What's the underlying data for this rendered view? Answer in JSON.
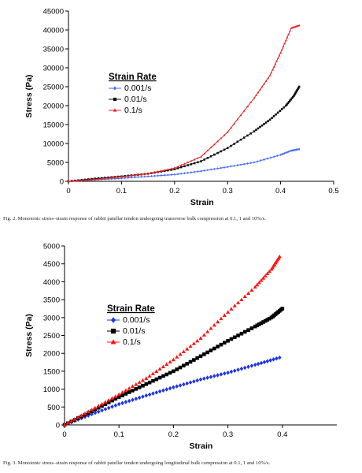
{
  "chart_data": [
    {
      "type": "line",
      "ylabel": "Stress (Pa)",
      "xlabel": "Strain",
      "xlim": [
        0,
        0.5
      ],
      "ylim": [
        0,
        45000
      ],
      "x_ticks": [
        0,
        0.1,
        0.2,
        0.3,
        0.4,
        0.5
      ],
      "x_tick_labels": [
        "0",
        "0.1",
        "0.2",
        "0.3",
        "0.4",
        "0.5"
      ],
      "y_ticks": [
        0,
        5000,
        10000,
        15000,
        20000,
        25000,
        30000,
        35000,
        40000,
        45000
      ],
      "y_tick_labels": [
        "0",
        "5000",
        "10000",
        "15000",
        "20000",
        "25000",
        "30000",
        "35000",
        "40000",
        "45000"
      ],
      "grid": false,
      "legend": {
        "title": "Strain Rate",
        "position": "upper-left"
      },
      "series": [
        {
          "name": "0.001/s",
          "color": "#4a6cf7",
          "marker": "diamond",
          "x": [
            0,
            0.05,
            0.1,
            0.15,
            0.2,
            0.25,
            0.3,
            0.35,
            0.4,
            0.42,
            0.435
          ],
          "y": [
            0,
            400,
            800,
            1300,
            1800,
            2700,
            3800,
            5000,
            7000,
            8100,
            8500
          ]
        },
        {
          "name": "0.01/s",
          "color": "#111111",
          "marker": "square",
          "x": [
            0,
            0.05,
            0.1,
            0.15,
            0.2,
            0.25,
            0.3,
            0.35,
            0.38,
            0.41,
            0.425,
            0.435
          ],
          "y": [
            0,
            700,
            1300,
            2000,
            3200,
            5300,
            8800,
            13200,
            16300,
            20000,
            22600,
            25000
          ]
        },
        {
          "name": "0.1/s",
          "color": "#ee2222",
          "marker": "triangle",
          "x": [
            0,
            0.05,
            0.1,
            0.15,
            0.2,
            0.25,
            0.3,
            0.35,
            0.38,
            0.4,
            0.42,
            0.435
          ],
          "y": [
            0,
            500,
            1200,
            2000,
            3500,
            6500,
            13000,
            22000,
            28000,
            34000,
            40500,
            41200
          ]
        }
      ]
    },
    {
      "type": "scatter",
      "ylabel": "Stress (Pa)",
      "xlabel": "Strain",
      "xlim": [
        0,
        0.5
      ],
      "ylim": [
        0,
        5000
      ],
      "x_ticks": [
        0,
        0.1,
        0.2,
        0.3,
        0.4
      ],
      "x_tick_labels": [
        "0",
        "0.1",
        "0.2",
        "0.3",
        "0.4"
      ],
      "y_ticks": [
        0,
        500,
        1000,
        1500,
        2000,
        2500,
        3000,
        3500,
        4000,
        4500,
        5000
      ],
      "y_tick_labels": [
        "0",
        "500",
        "1000",
        "1500",
        "2000",
        "2500",
        "3000",
        "3500",
        "4000",
        "4500",
        "5000"
      ],
      "grid": false,
      "legend": {
        "title": "Strain Rate",
        "position": "upper-left"
      },
      "series": [
        {
          "name": "0.001/s",
          "color": "#1f35e6",
          "marker": "diamond",
          "x": [
            0,
            0.05,
            0.1,
            0.15,
            0.2,
            0.25,
            0.3,
            0.35,
            0.395
          ],
          "y": [
            0,
            300,
            580,
            820,
            1050,
            1270,
            1460,
            1680,
            1880
          ]
        },
        {
          "name": "0.01/s",
          "color": "#000000",
          "marker": "square",
          "x": [
            0,
            0.05,
            0.1,
            0.15,
            0.2,
            0.25,
            0.3,
            0.35,
            0.38,
            0.4
          ],
          "y": [
            0,
            380,
            780,
            1140,
            1500,
            1920,
            2350,
            2750,
            3000,
            3250
          ]
        },
        {
          "name": "0.1/s",
          "color": "#ff1111",
          "marker": "triangle",
          "x": [
            0,
            0.05,
            0.1,
            0.15,
            0.2,
            0.25,
            0.3,
            0.35,
            0.38,
            0.395
          ],
          "y": [
            0,
            420,
            850,
            1300,
            1820,
            2420,
            3150,
            3850,
            4350,
            4700
          ]
        }
      ]
    }
  ],
  "captions": [
    "Fig. 2. Monotonic stress–strain response of rabbit patellar tendon undergoing transverse bulk compression at 0.1, 1 and 10%/s.",
    "Fig. 3. Monotonic stress–strain response of rabbit patellar tendon undergoing longitudinal bulk compression at 0.1, 1 and 10%/s."
  ]
}
